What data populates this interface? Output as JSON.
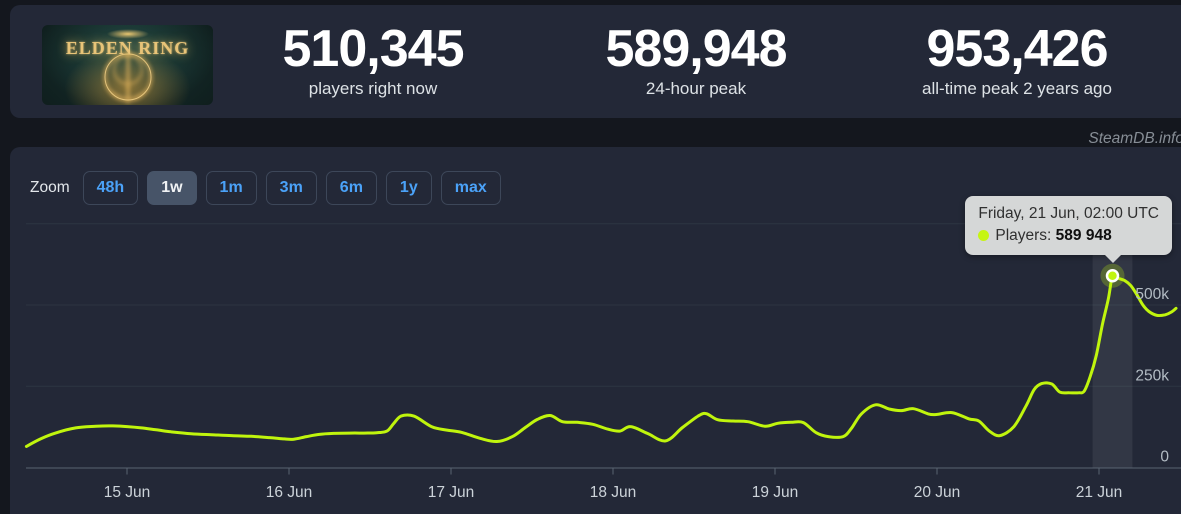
{
  "header": {
    "game_title": "ELDEN RING",
    "stats": [
      {
        "value": "510,345",
        "label": "players right now"
      },
      {
        "value": "589,948",
        "label": "24-hour peak"
      },
      {
        "value": "953,426",
        "label": "all-time peak 2 years ago"
      }
    ]
  },
  "watermark": "SteamDB.info",
  "toolbar": {
    "zoom_label": "Zoom",
    "active_range": "1w",
    "ranges": [
      {
        "label": "48h"
      },
      {
        "label": "1w"
      },
      {
        "label": "1m"
      },
      {
        "label": "3m"
      },
      {
        "label": "6m"
      },
      {
        "label": "1y"
      },
      {
        "label": "max"
      }
    ]
  },
  "tooltip": {
    "title": "Friday, 21 Jun, 02:00 UTC",
    "series_label": "Players:",
    "value": "589 948"
  },
  "colors": {
    "accent_line": "#c0f50d",
    "link_blue": "#4ba2f8",
    "panel": "#232837",
    "page_background": "#14171e",
    "tooltip_background": "#d5d7d7"
  },
  "chart_data": {
    "type": "line",
    "title": "",
    "legend": "off",
    "grid": "horizontal",
    "x_axis": {
      "unit": "time (hours since 14 Jun 00:00 UTC)",
      "tick_hours": [
        24,
        48,
        72,
        96,
        120,
        144,
        168
      ],
      "tick_labels": [
        "15 Jun",
        "16 Jun",
        "17 Jun",
        "18 Jun",
        "19 Jun",
        "20 Jun",
        "21 Jun"
      ],
      "range_hours": [
        9.1,
        179.4
      ]
    },
    "y_axis": {
      "ticks": [
        {
          "value": 0,
          "label": "0"
        },
        {
          "value": 250000,
          "label": "250k"
        },
        {
          "value": 500000,
          "label": "500k"
        },
        {
          "value": 750000,
          "label": ""
        }
      ],
      "range": [
        0,
        766000
      ]
    },
    "hover_point": {
      "hour": 170,
      "players": 589948,
      "band_width_hours": 5.9
    },
    "series": [
      {
        "name": "Players",
        "color": "#c0f50d",
        "points": [
          [
            9.1,
            65000
          ],
          [
            11.2,
            88000
          ],
          [
            13.4,
            106000
          ],
          [
            16.4,
            122000
          ],
          [
            19.4,
            127000
          ],
          [
            21.9,
            128000
          ],
          [
            24,
            126000
          ],
          [
            26.1,
            122000
          ],
          [
            28.3,
            116000
          ],
          [
            30.5,
            110000
          ],
          [
            33.5,
            104000
          ],
          [
            36.5,
            101000
          ],
          [
            39.5,
            98000
          ],
          [
            42.4,
            96000
          ],
          [
            45.1,
            92000
          ],
          [
            47.3,
            88000
          ],
          [
            48.7,
            87000
          ],
          [
            50.6,
            95000
          ],
          [
            52.5,
            102000
          ],
          [
            54.6,
            105000
          ],
          [
            57,
            106000
          ],
          [
            59.1,
            106000
          ],
          [
            61,
            107000
          ],
          [
            62.5,
            112000
          ],
          [
            63.5,
            135000
          ],
          [
            64.6,
            158000
          ],
          [
            66.5,
            158000
          ],
          [
            69.2,
            125000
          ],
          [
            71.4,
            115000
          ],
          [
            73.6,
            108000
          ],
          [
            76.3,
            90000
          ],
          [
            78.8,
            80000
          ],
          [
            81.1,
            95000
          ],
          [
            83,
            123000
          ],
          [
            84.8,
            148000
          ],
          [
            86.7,
            160000
          ],
          [
            88.5,
            141000
          ],
          [
            90.7,
            139000
          ],
          [
            93,
            133000
          ],
          [
            95.2,
            118000
          ],
          [
            97,
            112000
          ],
          [
            98.6,
            126000
          ],
          [
            101.1,
            105000
          ],
          [
            103.8,
            82000
          ],
          [
            106.3,
            123000
          ],
          [
            108.6,
            158000
          ],
          [
            109.8,
            166000
          ],
          [
            111.5,
            147000
          ],
          [
            113.8,
            143000
          ],
          [
            116,
            141000
          ],
          [
            118.5,
            127000
          ],
          [
            120.4,
            136000
          ],
          [
            122.4,
            139000
          ],
          [
            124.2,
            138000
          ],
          [
            126.1,
            107000
          ],
          [
            127.9,
            95000
          ],
          [
            130.1,
            95000
          ],
          [
            131.3,
            120000
          ],
          [
            132.8,
            165000
          ],
          [
            134.9,
            193000
          ],
          [
            136.9,
            180000
          ],
          [
            138.7,
            175000
          ],
          [
            140.5,
            181000
          ],
          [
            142.7,
            165000
          ],
          [
            143.9,
            163000
          ],
          [
            146.2,
            169000
          ],
          [
            148.7,
            150000
          ],
          [
            150.2,
            143000
          ],
          [
            151.7,
            113000
          ],
          [
            153.3,
            98000
          ],
          [
            155.4,
            126000
          ],
          [
            157.2,
            190000
          ],
          [
            158.4,
            240000
          ],
          [
            159.5,
            258000
          ],
          [
            161,
            257000
          ],
          [
            162.2,
            232000
          ],
          [
            163.6,
            230000
          ],
          [
            165,
            230000
          ],
          [
            165.8,
            235000
          ],
          [
            166.7,
            280000
          ],
          [
            167.6,
            345000
          ],
          [
            168.5,
            440000
          ],
          [
            169.4,
            520000
          ],
          [
            170,
            589948
          ],
          [
            170.7,
            583000
          ],
          [
            171.8,
            575000
          ],
          [
            172.7,
            560000
          ],
          [
            173.6,
            532000
          ],
          [
            174.5,
            500000
          ],
          [
            175.4,
            480000
          ],
          [
            176.6,
            468000
          ],
          [
            177.8,
            470000
          ],
          [
            178.7,
            478000
          ],
          [
            179.4,
            490000
          ]
        ]
      }
    ]
  }
}
